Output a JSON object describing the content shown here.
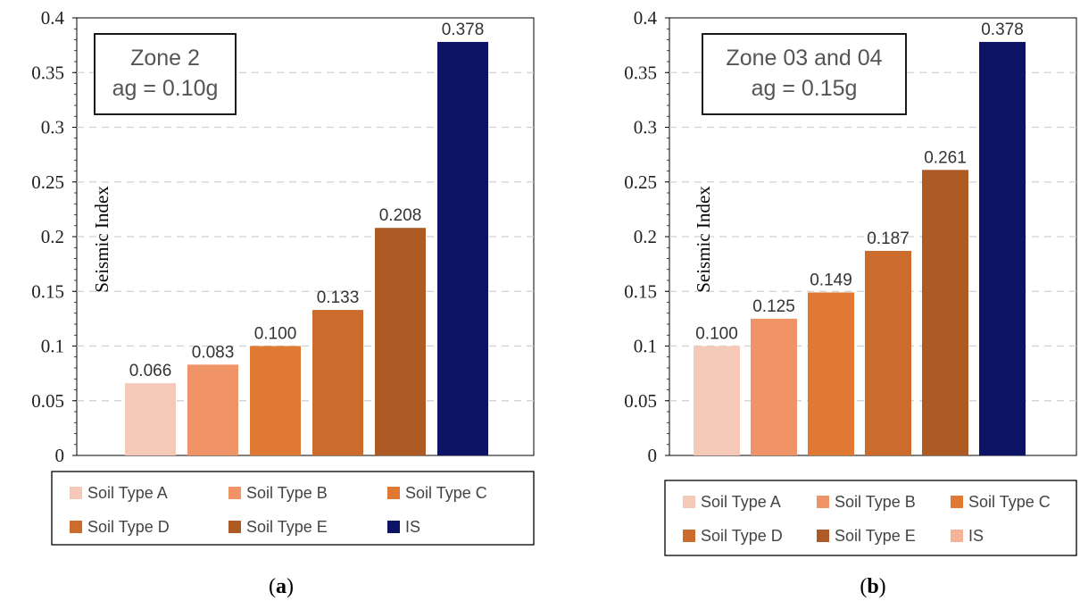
{
  "chart_data": [
    {
      "type": "bar",
      "panel_label": "a",
      "ylabel": "Seismic Index",
      "ylim": [
        0,
        0.4
      ],
      "yticks": [
        "0",
        "0.05",
        "0.1",
        "0.15",
        "0.2",
        "0.25",
        "0.3",
        "0.35",
        "0.4"
      ],
      "grid": "horizontal dashed",
      "annotation": [
        "Zone 2",
        "ag = 0.10g"
      ],
      "legend_position": "bottom",
      "series": [
        {
          "name": "Soil Type A",
          "value": 0.066,
          "label": "0.066",
          "color": "#f5c9b8"
        },
        {
          "name": "Soil Type B",
          "value": 0.083,
          "label": "0.083",
          "color": "#f09468"
        },
        {
          "name": "Soil Type C",
          "value": 0.1,
          "label": "0.100",
          "color": "#e07934"
        },
        {
          "name": "Soil Type D",
          "value": 0.133,
          "label": "0.133",
          "color": "#cc6c2c"
        },
        {
          "name": "Soil Type E",
          "value": 0.208,
          "label": "0.208",
          "color": "#ad5a24"
        },
        {
          "name": "IS",
          "value": 0.378,
          "label": "0.378",
          "color": "#0d1466"
        }
      ]
    },
    {
      "type": "bar",
      "panel_label": "b",
      "ylabel": "Seismic Index",
      "ylim": [
        0,
        0.4
      ],
      "yticks": [
        "0",
        "0.05",
        "0.1",
        "0.15",
        "0.2",
        "0.25",
        "0.3",
        "0.35",
        "0.4"
      ],
      "grid": "horizontal dashed",
      "annotation": [
        "Zone 03 and 04",
        "ag = 0.15g"
      ],
      "legend_position": "bottom",
      "series": [
        {
          "name": "Soil Type A",
          "value": 0.1,
          "label": "0.100",
          "color": "#f5c9b8"
        },
        {
          "name": "Soil Type B",
          "value": 0.125,
          "label": "0.125",
          "color": "#f09468"
        },
        {
          "name": "Soil Type C",
          "value": 0.149,
          "label": "0.149",
          "color": "#e07934"
        },
        {
          "name": "Soil Type D",
          "value": 0.187,
          "label": "0.187",
          "color": "#cc6c2c"
        },
        {
          "name": "Soil Type E",
          "value": 0.261,
          "label": "0.261",
          "color": "#ad5a24"
        },
        {
          "name": "IS",
          "value": 0.378,
          "label": "0.378",
          "color": "#0d1466"
        }
      ],
      "legend_swatch_colors": [
        "#f5c9b8",
        "#f09468",
        "#e07934",
        "#cc6c2c",
        "#ad5a24",
        "#f5b49a"
      ]
    }
  ]
}
